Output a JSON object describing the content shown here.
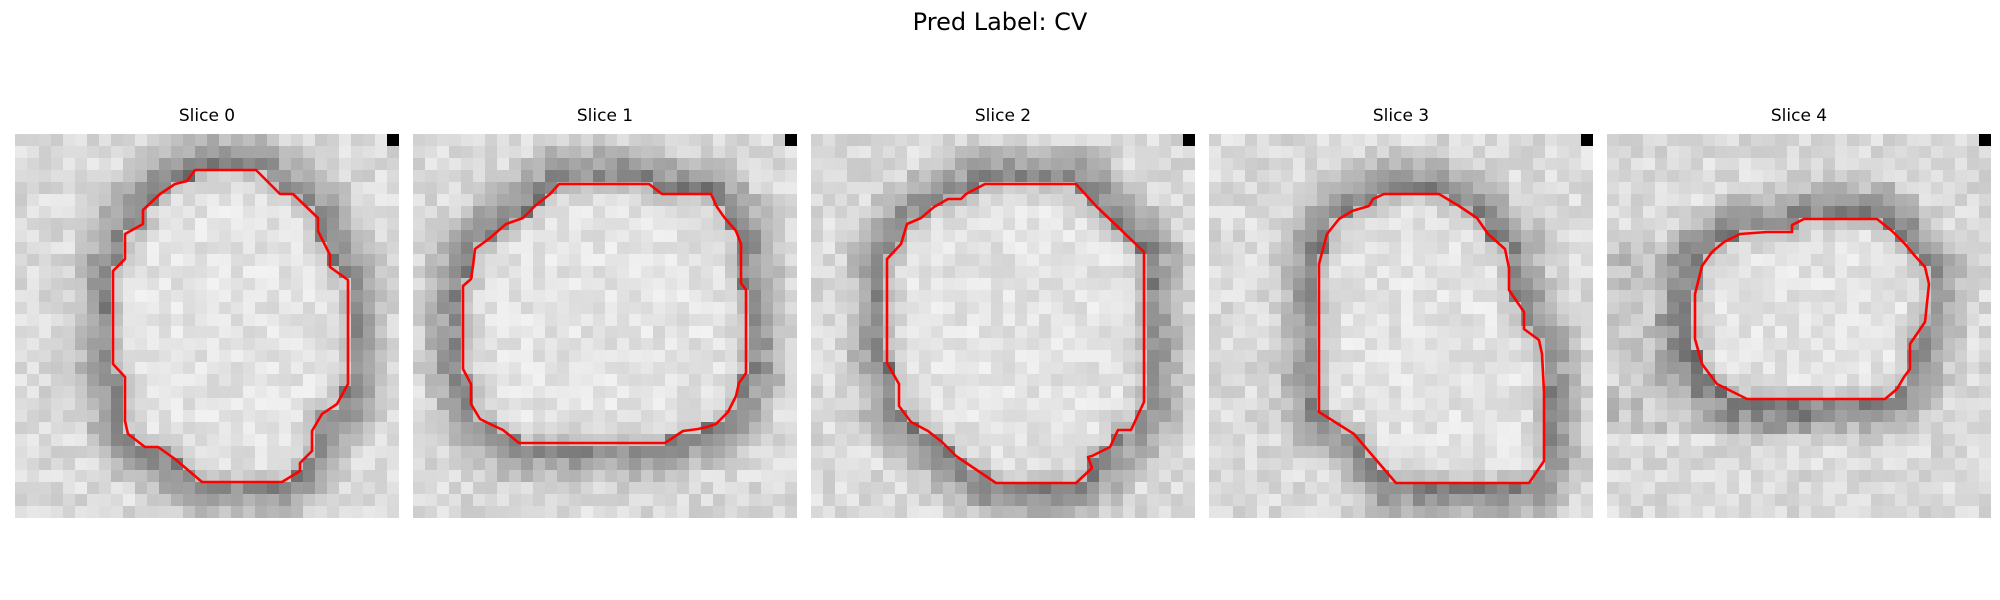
{
  "figure": {
    "suptitle": "Pred Label: CV"
  },
  "colors": {
    "contour": "#ff0000",
    "cmap": "gray"
  },
  "panels": [
    {
      "title": "Slice 0"
    },
    {
      "title": "Slice 1"
    },
    {
      "title": "Slice 2"
    },
    {
      "title": "Slice 3"
    },
    {
      "title": "Slice 4"
    }
  ]
}
